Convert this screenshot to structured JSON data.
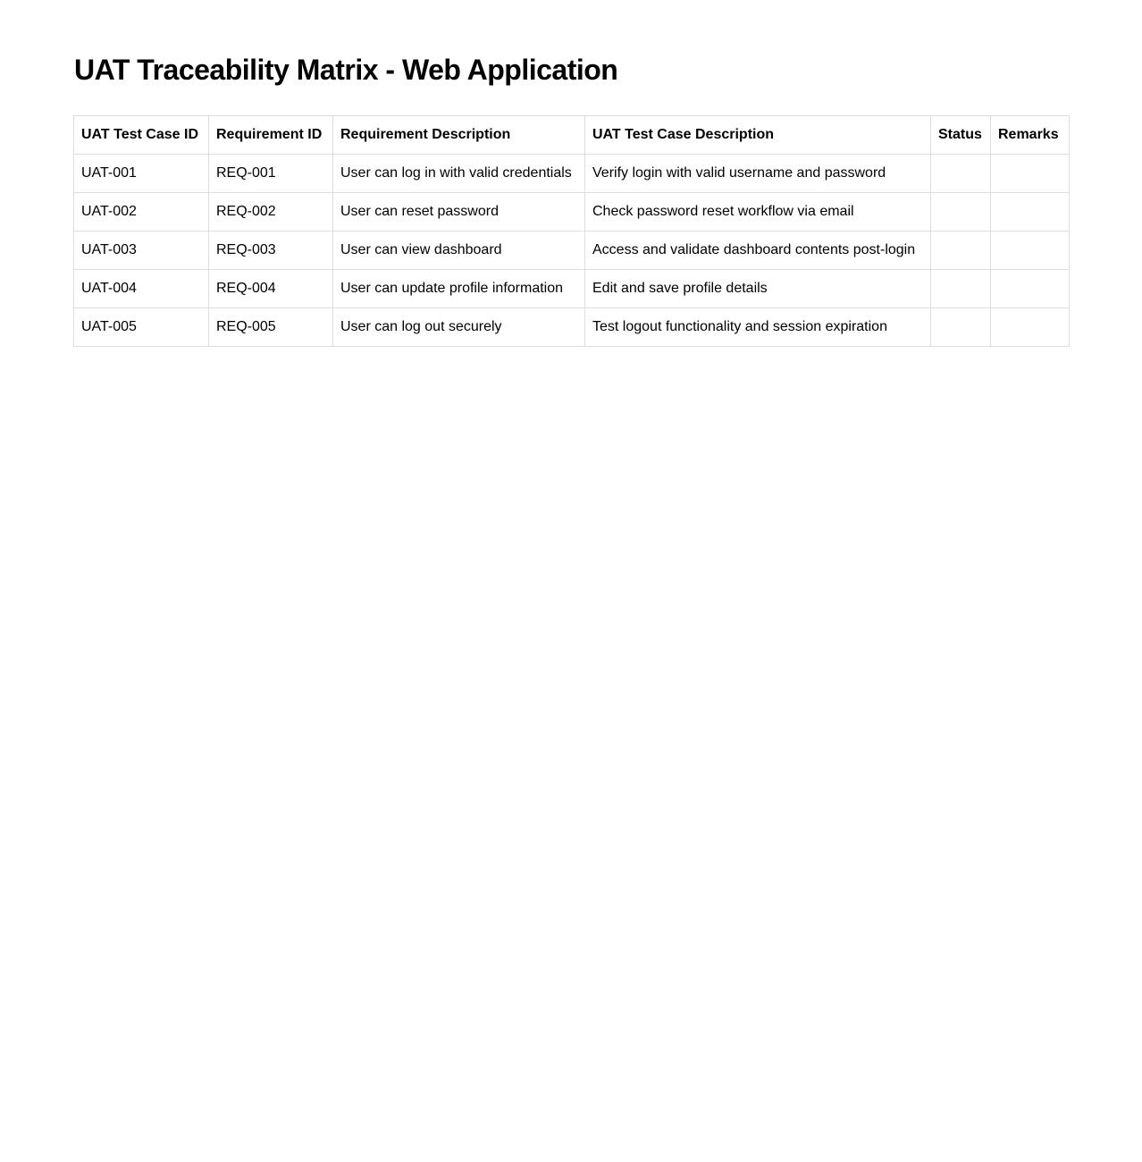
{
  "title": "UAT Traceability Matrix - Web Application",
  "table": {
    "headers": [
      "UAT Test Case ID",
      "Requirement ID",
      "Requirement Description",
      "UAT Test Case Description",
      "Status",
      "Remarks"
    ],
    "rows": [
      [
        "UAT-001",
        "REQ-001",
        "User can log in with valid credentials",
        "Verify login with valid username and password",
        "",
        ""
      ],
      [
        "UAT-002",
        "REQ-002",
        "User can reset password",
        "Check password reset workflow via email",
        "",
        ""
      ],
      [
        "UAT-003",
        "REQ-003",
        "User can view dashboard",
        "Access and validate dashboard contents post-login",
        "",
        ""
      ],
      [
        "UAT-004",
        "REQ-004",
        "User can update profile information",
        "Edit and save profile details",
        "",
        ""
      ],
      [
        "UAT-005",
        "REQ-005",
        "User can log out securely",
        "Test logout functionality and session expiration",
        "",
        ""
      ]
    ]
  }
}
